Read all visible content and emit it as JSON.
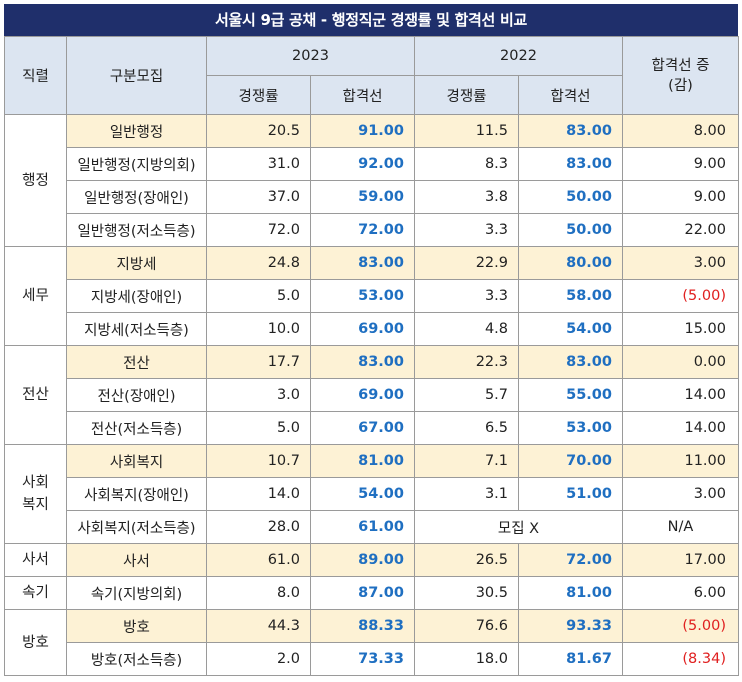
{
  "title": "서울시 9급 공채 - 행정직군 경쟁률 및 합격선 비교",
  "headers": {
    "rank": "직렬",
    "category": "구분모집",
    "year1": "2023",
    "year2": "2022",
    "comp": "경쟁률",
    "pass": "합격선",
    "diff": "합격선 증(감)"
  },
  "groups": [
    {
      "rank": "행정",
      "rows": [
        {
          "category": "일반행정",
          "c23": "20.5",
          "p23": "91.00",
          "c22": "11.5",
          "p22": "83.00",
          "diff": "8.00",
          "neg": false,
          "hl": true
        },
        {
          "category": "일반행정(지방의회)",
          "c23": "31.0",
          "p23": "92.00",
          "c22": "8.3",
          "p22": "83.00",
          "diff": "9.00",
          "neg": false,
          "hl": false
        },
        {
          "category": "일반행정(장애인)",
          "c23": "37.0",
          "p23": "59.00",
          "c22": "3.8",
          "p22": "50.00",
          "diff": "9.00",
          "neg": false,
          "hl": false
        },
        {
          "category": "일반행정(저소득층)",
          "c23": "72.0",
          "p23": "72.00",
          "c22": "3.3",
          "p22": "50.00",
          "diff": "22.00",
          "neg": false,
          "hl": false
        }
      ]
    },
    {
      "rank": "세무",
      "rows": [
        {
          "category": "지방세",
          "c23": "24.8",
          "p23": "83.00",
          "c22": "22.9",
          "p22": "80.00",
          "diff": "3.00",
          "neg": false,
          "hl": true
        },
        {
          "category": "지방세(장애인)",
          "c23": "5.0",
          "p23": "53.00",
          "c22": "3.3",
          "p22": "58.00",
          "diff": "(5.00)",
          "neg": true,
          "hl": false
        },
        {
          "category": "지방세(저소득층)",
          "c23": "10.0",
          "p23": "69.00",
          "c22": "4.8",
          "p22": "54.00",
          "diff": "15.00",
          "neg": false,
          "hl": false
        }
      ]
    },
    {
      "rank": "전산",
      "rows": [
        {
          "category": "전산",
          "c23": "17.7",
          "p23": "83.00",
          "c22": "22.3",
          "p22": "83.00",
          "diff": "0.00",
          "neg": false,
          "hl": true
        },
        {
          "category": "전산(장애인)",
          "c23": "3.0",
          "p23": "69.00",
          "c22": "5.7",
          "p22": "55.00",
          "diff": "14.00",
          "neg": false,
          "hl": false
        },
        {
          "category": "전산(저소득층)",
          "c23": "5.0",
          "p23": "67.00",
          "c22": "6.5",
          "p22": "53.00",
          "diff": "14.00",
          "neg": false,
          "hl": false
        }
      ]
    },
    {
      "rank": "사회\n복지",
      "rows": [
        {
          "category": "사회복지",
          "c23": "10.7",
          "p23": "81.00",
          "c22": "7.1",
          "p22": "70.00",
          "diff": "11.00",
          "neg": false,
          "hl": true
        },
        {
          "category": "사회복지(장애인)",
          "c23": "14.0",
          "p23": "54.00",
          "c22": "3.1",
          "p22": "51.00",
          "diff": "3.00",
          "neg": false,
          "hl": false
        },
        {
          "category": "사회복지(저소득층)",
          "c23": "28.0",
          "p23": "61.00",
          "merged22": "모집 X",
          "diff": "N/A",
          "neg": false,
          "hl": false,
          "center_diff": true
        }
      ]
    },
    {
      "rank": "사서",
      "rows": [
        {
          "category": "사서",
          "c23": "61.0",
          "p23": "89.00",
          "c22": "26.5",
          "p22": "72.00",
          "diff": "17.00",
          "neg": false,
          "hl": true
        }
      ]
    },
    {
      "rank": "속기",
      "rows": [
        {
          "category": "속기(지방의회)",
          "c23": "8.0",
          "p23": "87.00",
          "c22": "30.5",
          "p22": "81.00",
          "diff": "6.00",
          "neg": false,
          "hl": false
        }
      ]
    },
    {
      "rank": "방호",
      "rows": [
        {
          "category": "방호",
          "c23": "44.3",
          "p23": "88.33",
          "c22": "76.6",
          "p22": "93.33",
          "diff": "(5.00)",
          "neg": true,
          "hl": true
        },
        {
          "category": "방호(저소득층)",
          "c23": "2.0",
          "p23": "73.33",
          "c22": "18.0",
          "p22": "81.67",
          "diff": "(8.34)",
          "neg": true,
          "hl": false
        }
      ]
    }
  ]
}
